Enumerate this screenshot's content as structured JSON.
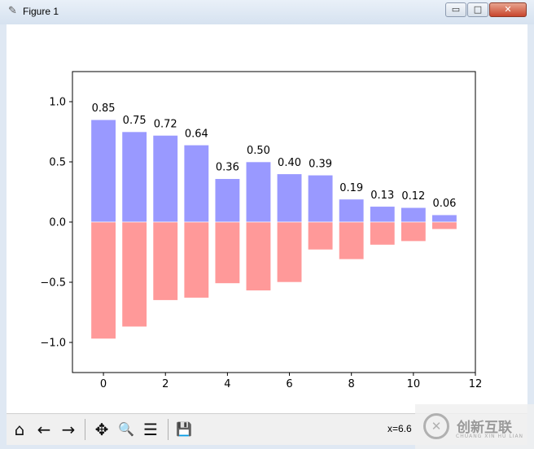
{
  "window": {
    "title": "Figure 1",
    "icon": "feather-icon",
    "minimize": "▭",
    "maximize": "□",
    "close": "✕"
  },
  "toolbar": {
    "buttons": [
      {
        "icon": "home-icon",
        "glyph": "⌂"
      },
      {
        "icon": "back-arrow-icon",
        "glyph": "←"
      },
      {
        "icon": "forward-arrow-icon",
        "glyph": "→"
      },
      {
        "icon": "pan-icon",
        "glyph": "✥"
      },
      {
        "icon": "zoom-icon",
        "glyph": "🔍"
      },
      {
        "icon": "configure-subplots-icon",
        "glyph": "☰"
      },
      {
        "icon": "save-icon",
        "glyph": "💾"
      }
    ],
    "coord_text": "x=6.6"
  },
  "watermark": {
    "text": "创新互联",
    "sub": "CHUANG XIN HU LIAN",
    "logo": "✕"
  },
  "chart_data": {
    "type": "bar",
    "x": [
      0,
      1,
      2,
      3,
      4,
      5,
      6,
      7,
      8,
      9,
      10,
      11
    ],
    "series": [
      {
        "values": [
          0.85,
          0.75,
          0.72,
          0.64,
          0.36,
          0.5,
          0.4,
          0.39,
          0.19,
          0.13,
          0.12,
          0.06
        ],
        "color": "#9999ff",
        "labels": [
          "0.85",
          "0.75",
          "0.72",
          "0.64",
          "0.36",
          "0.50",
          "0.40",
          "0.39",
          "0.19",
          "0.13",
          "0.12",
          "0.06"
        ]
      },
      {
        "values": [
          -0.97,
          -0.87,
          -0.65,
          -0.63,
          -0.51,
          -0.57,
          -0.5,
          -0.23,
          -0.31,
          -0.19,
          -0.16,
          -0.06
        ],
        "color": "#ff9999"
      }
    ],
    "xlim": [
      -1,
      12
    ],
    "ylim": [
      -1.25,
      1.25
    ],
    "xticks": [
      "0",
      "2",
      "4",
      "6",
      "8",
      "10",
      "12"
    ],
    "xtick_values": [
      0,
      2,
      4,
      6,
      8,
      10,
      12
    ],
    "yticks": [
      "1.0",
      "0.5",
      "0.0",
      "−0.5",
      "−1.0"
    ],
    "ytick_values": [
      1.0,
      0.5,
      0.0,
      -0.5,
      -1.0
    ],
    "grid": false,
    "title": "",
    "xlabel": "",
    "ylabel": ""
  }
}
